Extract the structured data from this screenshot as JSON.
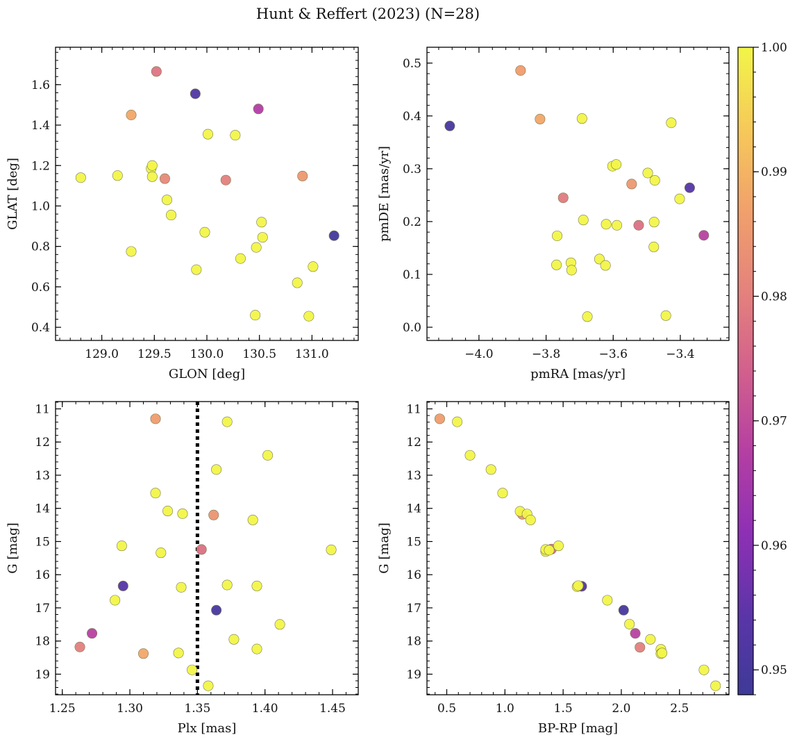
{
  "figure": {
    "title": "Hunt & Reffert (2023) (N=28)"
  },
  "colorbar": {
    "colormap": "plasma",
    "range": [
      0.948,
      1.0
    ],
    "ticks": [
      0.95,
      0.96,
      0.97,
      0.98,
      0.99,
      1.0
    ],
    "tick_labels": [
      "0.95",
      "0.96",
      "0.97",
      "0.98",
      "0.99",
      "1.00"
    ]
  },
  "chart_data": [
    {
      "type": "scatter",
      "xlabel": "GLON [deg]",
      "ylabel": "GLAT [deg]",
      "xlim": [
        128.56,
        131.44
      ],
      "ylim": [
        0.335,
        1.785
      ],
      "xticks": [
        129.0,
        129.5,
        130.0,
        130.5,
        131.0
      ],
      "xtick_labels": [
        "129.0",
        "129.5",
        "130.0",
        "130.5",
        "131.0"
      ],
      "yticks": [
        0.4,
        0.6,
        0.8,
        1.0,
        1.2,
        1.4,
        1.6
      ],
      "ytick_labels": [
        "0.4",
        "0.6",
        "0.8",
        "1.0",
        "1.2",
        "1.4",
        "1.6"
      ],
      "invert_y": false,
      "points": [
        {
          "x": 128.8,
          "y": 1.14,
          "c": 1.0
        },
        {
          "x": 129.15,
          "y": 1.15,
          "c": 1.0
        },
        {
          "x": 129.47,
          "y": 1.185,
          "c": 1.0
        },
        {
          "x": 129.48,
          "y": 1.2,
          "c": 1.0
        },
        {
          "x": 129.48,
          "y": 1.145,
          "c": 1.0
        },
        {
          "x": 129.28,
          "y": 0.775,
          "c": 1.0
        },
        {
          "x": 129.62,
          "y": 1.03,
          "c": 1.0
        },
        {
          "x": 129.66,
          "y": 0.955,
          "c": 1.0
        },
        {
          "x": 129.9,
          "y": 0.685,
          "c": 1.0
        },
        {
          "x": 129.98,
          "y": 0.87,
          "c": 1.0
        },
        {
          "x": 130.01,
          "y": 1.355,
          "c": 1.0
        },
        {
          "x": 130.27,
          "y": 1.35,
          "c": 1.0
        },
        {
          "x": 130.32,
          "y": 0.74,
          "c": 1.0
        },
        {
          "x": 130.47,
          "y": 0.795,
          "c": 1.0
        },
        {
          "x": 130.52,
          "y": 0.92,
          "c": 1.0
        },
        {
          "x": 130.53,
          "y": 0.845,
          "c": 1.0
        },
        {
          "x": 130.46,
          "y": 0.46,
          "c": 1.0
        },
        {
          "x": 130.86,
          "y": 0.62,
          "c": 1.0
        },
        {
          "x": 130.97,
          "y": 0.455,
          "c": 1.0
        },
        {
          "x": 131.01,
          "y": 0.7,
          "c": 1.0
        },
        {
          "x": 129.52,
          "y": 1.665,
          "c": 0.978
        },
        {
          "x": 129.28,
          "y": 1.45,
          "c": 0.988
        },
        {
          "x": 129.6,
          "y": 1.135,
          "c": 0.982
        },
        {
          "x": 130.18,
          "y": 1.128,
          "c": 0.98
        },
        {
          "x": 130.91,
          "y": 1.148,
          "c": 0.985
        },
        {
          "x": 129.89,
          "y": 1.555,
          "c": 0.952
        },
        {
          "x": 130.49,
          "y": 1.48,
          "c": 0.967
        },
        {
          "x": 131.21,
          "y": 0.853,
          "c": 0.949
        }
      ]
    },
    {
      "type": "scatter",
      "xlabel": "pmRA [mas/yr]",
      "ylabel": "pmDE [mas/yr]",
      "xlim": [
        -4.155,
        -3.255
      ],
      "ylim": [
        -0.025,
        0.53
      ],
      "xticks": [
        -4.0,
        -3.8,
        -3.6,
        -3.4
      ],
      "xtick_labels": [
        "−4.0",
        "−3.8",
        "−3.6",
        "−3.4"
      ],
      "yticks": [
        0.0,
        0.1,
        0.2,
        0.3,
        0.4,
        0.5
      ],
      "ytick_labels": [
        "0.0",
        "0.1",
        "0.2",
        "0.3",
        "0.4",
        "0.5"
      ],
      "invert_y": false,
      "points": [
        {
          "x": -3.693,
          "y": 0.395,
          "c": 1.0
        },
        {
          "x": -3.427,
          "y": 0.387,
          "c": 1.0
        },
        {
          "x": -3.602,
          "y": 0.305,
          "c": 1.0
        },
        {
          "x": -3.591,
          "y": 0.308,
          "c": 1.0
        },
        {
          "x": -3.497,
          "y": 0.292,
          "c": 1.0
        },
        {
          "x": -3.476,
          "y": 0.278,
          "c": 1.0
        },
        {
          "x": -3.402,
          "y": 0.243,
          "c": 1.0
        },
        {
          "x": -3.767,
          "y": 0.173,
          "c": 1.0
        },
        {
          "x": -3.689,
          "y": 0.203,
          "c": 1.0
        },
        {
          "x": -3.621,
          "y": 0.195,
          "c": 1.0
        },
        {
          "x": -3.589,
          "y": 0.193,
          "c": 1.0
        },
        {
          "x": -3.478,
          "y": 0.199,
          "c": 1.0
        },
        {
          "x": -3.479,
          "y": 0.152,
          "c": 1.0
        },
        {
          "x": -3.769,
          "y": 0.118,
          "c": 1.0
        },
        {
          "x": -3.726,
          "y": 0.122,
          "c": 1.0
        },
        {
          "x": -3.724,
          "y": 0.108,
          "c": 1.0
        },
        {
          "x": -3.641,
          "y": 0.129,
          "c": 1.0
        },
        {
          "x": -3.623,
          "y": 0.117,
          "c": 1.0
        },
        {
          "x": -3.677,
          "y": 0.02,
          "c": 1.0
        },
        {
          "x": -3.443,
          "y": 0.022,
          "c": 1.0
        },
        {
          "x": -3.876,
          "y": 0.486,
          "c": 0.986
        },
        {
          "x": -3.818,
          "y": 0.394,
          "c": 0.988
        },
        {
          "x": -3.749,
          "y": 0.245,
          "c": 0.979
        },
        {
          "x": -3.545,
          "y": 0.271,
          "c": 0.985
        },
        {
          "x": -3.524,
          "y": 0.193,
          "c": 0.977
        },
        {
          "x": -4.087,
          "y": 0.381,
          "c": 0.95
        },
        {
          "x": -3.372,
          "y": 0.264,
          "c": 0.953
        },
        {
          "x": -3.33,
          "y": 0.174,
          "c": 0.968
        }
      ]
    },
    {
      "type": "scatter",
      "xlabel": "Plx [mas]",
      "ylabel": "G [mag]",
      "xlim": [
        1.245,
        1.469
      ],
      "ylim": [
        19.62,
        10.78
      ],
      "xticks": [
        1.25,
        1.3,
        1.35,
        1.4,
        1.45
      ],
      "xtick_labels": [
        "1.25",
        "1.30",
        "1.35",
        "1.40",
        "1.45"
      ],
      "yticks": [
        11,
        12,
        13,
        14,
        15,
        16,
        17,
        18,
        19
      ],
      "ytick_labels": [
        "11",
        "12",
        "13",
        "14",
        "15",
        "16",
        "17",
        "18",
        "19"
      ],
      "invert_y": true,
      "vline": {
        "x": 1.35,
        "style": "dotted",
        "color": "#000000"
      },
      "points": [
        {
          "x": 1.372,
          "y": 11.39,
          "c": 1.0
        },
        {
          "x": 1.402,
          "y": 12.4,
          "c": 1.0
        },
        {
          "x": 1.364,
          "y": 12.83,
          "c": 1.0
        },
        {
          "x": 1.319,
          "y": 13.54,
          "c": 1.0
        },
        {
          "x": 1.328,
          "y": 14.08,
          "c": 1.0
        },
        {
          "x": 1.339,
          "y": 14.16,
          "c": 1.0
        },
        {
          "x": 1.391,
          "y": 14.35,
          "c": 1.0
        },
        {
          "x": 1.294,
          "y": 15.13,
          "c": 1.0
        },
        {
          "x": 1.323,
          "y": 15.34,
          "c": 1.0
        },
        {
          "x": 1.449,
          "y": 15.25,
          "c": 1.0
        },
        {
          "x": 1.338,
          "y": 16.38,
          "c": 1.0
        },
        {
          "x": 1.372,
          "y": 16.31,
          "c": 1.0
        },
        {
          "x": 1.394,
          "y": 16.34,
          "c": 1.0
        },
        {
          "x": 1.289,
          "y": 16.77,
          "c": 1.0
        },
        {
          "x": 1.411,
          "y": 17.5,
          "c": 1.0
        },
        {
          "x": 1.377,
          "y": 17.95,
          "c": 1.0
        },
        {
          "x": 1.394,
          "y": 18.24,
          "c": 1.0
        },
        {
          "x": 1.336,
          "y": 18.36,
          "c": 1.0
        },
        {
          "x": 1.346,
          "y": 18.87,
          "c": 1.0
        },
        {
          "x": 1.358,
          "y": 19.35,
          "c": 1.0
        },
        {
          "x": 1.319,
          "y": 11.3,
          "c": 0.986
        },
        {
          "x": 1.362,
          "y": 14.2,
          "c": 0.984
        },
        {
          "x": 1.353,
          "y": 15.24,
          "c": 0.977
        },
        {
          "x": 1.31,
          "y": 18.38,
          "c": 0.988
        },
        {
          "x": 1.263,
          "y": 18.18,
          "c": 0.98
        },
        {
          "x": 1.295,
          "y": 16.34,
          "c": 0.953
        },
        {
          "x": 1.364,
          "y": 17.07,
          "c": 0.95
        },
        {
          "x": 1.272,
          "y": 17.77,
          "c": 0.968
        }
      ]
    },
    {
      "type": "scatter",
      "xlabel": "BP-RP [mag]",
      "ylabel": "G [mag]",
      "xlim": [
        0.33,
        2.925
      ],
      "ylim": [
        19.62,
        10.78
      ],
      "xticks": [
        0.5,
        1.0,
        1.5,
        2.0,
        2.5
      ],
      "xtick_labels": [
        "0.5",
        "1.0",
        "1.5",
        "2.0",
        "2.5"
      ],
      "yticks": [
        11,
        12,
        13,
        14,
        15,
        16,
        17,
        18,
        19
      ],
      "ytick_labels": [
        "11",
        "12",
        "13",
        "14",
        "15",
        "16",
        "17",
        "18",
        "19"
      ],
      "invert_y": true,
      "points": [
        {
          "x": 0.44,
          "y": 11.3,
          "c": 0.986
        },
        {
          "x": 1.4,
          "y": 15.23,
          "c": 0.977
        },
        {
          "x": 1.15,
          "y": 14.18,
          "c": 0.984
        },
        {
          "x": 2.16,
          "y": 18.19,
          "c": 0.98
        },
        {
          "x": 2.12,
          "y": 17.77,
          "c": 0.968
        },
        {
          "x": 1.66,
          "y": 16.35,
          "c": 0.953
        },
        {
          "x": 2.02,
          "y": 17.07,
          "c": 0.95
        },
        {
          "x": 0.59,
          "y": 11.39,
          "c": 1.0
        },
        {
          "x": 0.7,
          "y": 12.4,
          "c": 1.0
        },
        {
          "x": 0.88,
          "y": 12.83,
          "c": 1.0
        },
        {
          "x": 0.98,
          "y": 13.54,
          "c": 1.0
        },
        {
          "x": 1.13,
          "y": 14.09,
          "c": 1.0
        },
        {
          "x": 1.19,
          "y": 14.17,
          "c": 1.0
        },
        {
          "x": 1.22,
          "y": 14.35,
          "c": 1.0
        },
        {
          "x": 1.35,
          "y": 15.3,
          "c": 1.0
        },
        {
          "x": 1.35,
          "y": 15.24,
          "c": 1.0
        },
        {
          "x": 1.46,
          "y": 15.13,
          "c": 1.0
        },
        {
          "x": 1.62,
          "y": 16.36,
          "c": 1.0
        },
        {
          "x": 1.63,
          "y": 16.33,
          "c": 1.0
        },
        {
          "x": 1.88,
          "y": 16.77,
          "c": 1.0
        },
        {
          "x": 2.07,
          "y": 17.49,
          "c": 1.0
        },
        {
          "x": 2.25,
          "y": 17.95,
          "c": 1.0
        },
        {
          "x": 2.34,
          "y": 18.25,
          "c": 1.0
        },
        {
          "x": 2.34,
          "y": 18.38,
          "c": 1.0
        },
        {
          "x": 2.35,
          "y": 18.36,
          "c": 1.0
        },
        {
          "x": 2.71,
          "y": 18.87,
          "c": 1.0
        },
        {
          "x": 2.81,
          "y": 19.35,
          "c": 1.0
        },
        {
          "x": 1.38,
          "y": 15.26,
          "c": 1.0
        }
      ]
    }
  ]
}
